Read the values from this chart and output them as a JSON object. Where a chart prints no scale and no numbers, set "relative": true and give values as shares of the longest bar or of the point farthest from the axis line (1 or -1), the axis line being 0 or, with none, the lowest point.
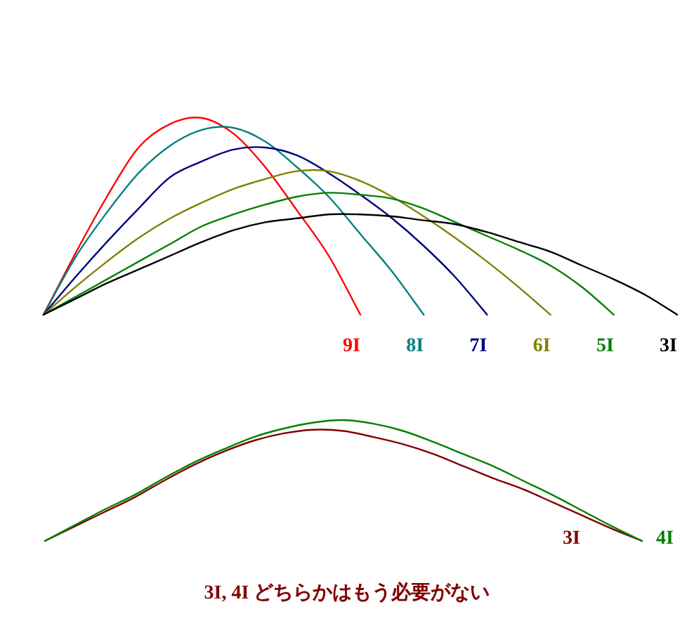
{
  "chart_data": [
    {
      "type": "line",
      "relative": true,
      "categories": [
        null,
        null,
        null,
        null,
        null,
        null,
        null,
        null,
        null,
        null,
        null,
        null,
        null,
        null,
        null,
        null,
        null,
        null,
        null,
        null,
        null
      ],
      "series": [
        {
          "name": "9I",
          "color": "#ff0000",
          "values": [
            0,
            0.31,
            0.6,
            0.85,
            0.97,
            1.0,
            0.92,
            0.75,
            0.53,
            0.3,
            0,
            null,
            null,
            null,
            null,
            null,
            null,
            null,
            null,
            null,
            null
          ]
        },
        {
          "name": "8I",
          "color": "#008080",
          "values": [
            0,
            0.29,
            0.52,
            0.72,
            0.86,
            0.94,
            0.95,
            0.88,
            0.75,
            0.6,
            0.41,
            0.22,
            0,
            null,
            null,
            null,
            null,
            null,
            null,
            null,
            null
          ]
        },
        {
          "name": "7I",
          "color": "#000080",
          "values": [
            0,
            0.19,
            0.37,
            0.54,
            0.7,
            0.78,
            0.84,
            0.85,
            0.81,
            0.72,
            0.61,
            0.49,
            0.35,
            0.19,
            0,
            null,
            null,
            null,
            null,
            null,
            null
          ]
        },
        {
          "name": "6I",
          "color": "#808000",
          "values": [
            0,
            0.14,
            0.27,
            0.39,
            0.49,
            0.57,
            0.64,
            0.69,
            0.73,
            0.73,
            0.68,
            0.6,
            0.5,
            0.39,
            0.27,
            0.14,
            0,
            null,
            null,
            null,
            null
          ]
        },
        {
          "name": "5I",
          "color": "#008000",
          "values": [
            0,
            0.09,
            0.18,
            0.27,
            0.36,
            0.45,
            0.51,
            0.56,
            0.6,
            0.62,
            0.61,
            0.59,
            0.54,
            0.47,
            0.4,
            0.33,
            0.25,
            0.14,
            0,
            null,
            null
          ]
        },
        {
          "name": "3I",
          "color": "#000000",
          "values": [
            0,
            0.08,
            0.16,
            0.23,
            0.3,
            0.37,
            0.43,
            0.47,
            0.49,
            0.51,
            0.51,
            0.5,
            0.48,
            0.46,
            0.42,
            0.37,
            0.32,
            0.25,
            0.18,
            0.1,
            0
          ]
        }
      ]
    },
    {
      "type": "line",
      "relative": true,
      "categories": [
        null,
        null,
        null,
        null,
        null,
        null,
        null,
        null,
        null,
        null,
        null,
        null,
        null,
        null,
        null,
        null,
        null,
        null,
        null,
        null,
        null
      ],
      "series": [
        {
          "name": "3I",
          "color": "#800000",
          "values": [
            0,
            0.12,
            0.24,
            0.36,
            0.5,
            0.63,
            0.74,
            0.83,
            0.89,
            0.92,
            0.91,
            0.86,
            0.8,
            0.72,
            0.62,
            0.52,
            0.43,
            0.32,
            0.21,
            0.1,
            0
          ]
        },
        {
          "name": "4I",
          "color": "#008000",
          "values": [
            0,
            0.13,
            0.26,
            0.38,
            0.52,
            0.65,
            0.76,
            0.86,
            0.93,
            0.98,
            1.0,
            0.97,
            0.91,
            0.82,
            0.72,
            0.62,
            0.5,
            0.38,
            0.25,
            0.12,
            0
          ]
        }
      ],
      "annotations": [
        "3I, 4I どちらかはもう必要がない"
      ]
    }
  ]
}
